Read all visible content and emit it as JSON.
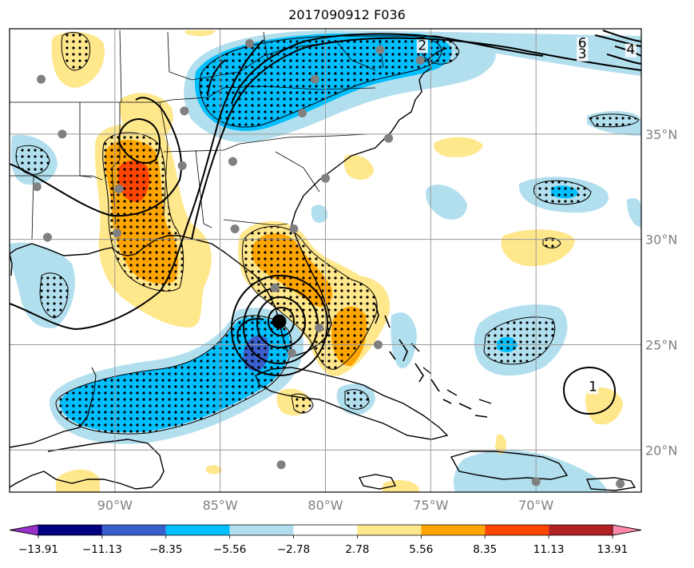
{
  "title": "2017090912 F036",
  "map": {
    "lon_range": [
      -95,
      -65
    ],
    "lat_range": [
      18,
      40
    ],
    "grid": true,
    "lon_ticks": [
      {
        "lon": -90,
        "label": "90°W"
      },
      {
        "lon": -85,
        "label": "85°W"
      },
      {
        "lon": -80,
        "label": "80°W"
      },
      {
        "lon": -75,
        "label": "75°W"
      },
      {
        "lon": -70,
        "label": "70°W"
      }
    ],
    "lat_ticks": [
      {
        "lat": 35,
        "label": "35°N"
      },
      {
        "lat": 30,
        "label": "30°N"
      },
      {
        "lat": 25,
        "label": "25°N"
      },
      {
        "lat": 20,
        "label": "20°N"
      }
    ],
    "storm_center": {
      "lon": -82.2,
      "lat": 26.1
    }
  },
  "contour_labels": [
    {
      "text": "2",
      "lon": -75.4,
      "lat": 39.0
    },
    {
      "text": "6",
      "lon": -67.8,
      "lat": 39.1
    },
    {
      "text": "3",
      "lon": -67.8,
      "lat": 38.6
    },
    {
      "text": "4",
      "lon": -65.5,
      "lat": 38.8
    },
    {
      "text": "1",
      "lon": -67.3,
      "lat": 22.8
    }
  ],
  "colorbar": {
    "colors": [
      "#9932cc",
      "#000080",
      "#3a5fcd",
      "#00bfff",
      "#b2dfee",
      "#ffffff",
      "#ffe78c",
      "#ffa500",
      "#ff4500",
      "#b22222",
      "#ff88aa"
    ],
    "labels": [
      "−13.91",
      "−11.13",
      "−8.35",
      "−5.56",
      "−2.78",
      "2.78",
      "5.56",
      "8.35",
      "11.13",
      "13.91"
    ]
  },
  "stations": [
    {
      "lon": -93.5,
      "lat": 37.6
    },
    {
      "lon": -92.5,
      "lat": 35.0
    },
    {
      "lon": -93.7,
      "lat": 32.5
    },
    {
      "lon": -93.2,
      "lat": 30.1
    },
    {
      "lon": -89.8,
      "lat": 32.4
    },
    {
      "lon": -89.9,
      "lat": 30.3
    },
    {
      "lon": -86.7,
      "lat": 36.1
    },
    {
      "lon": -86.8,
      "lat": 33.5
    },
    {
      "lon": -84.4,
      "lat": 33.7
    },
    {
      "lon": -84.3,
      "lat": 30.5
    },
    {
      "lon": -81.5,
      "lat": 30.5
    },
    {
      "lon": -80.0,
      "lat": 32.9
    },
    {
      "lon": -81.1,
      "lat": 36.0
    },
    {
      "lon": -80.5,
      "lat": 37.6
    },
    {
      "lon": -77.0,
      "lat": 34.8
    },
    {
      "lon": -77.4,
      "lat": 39.0
    },
    {
      "lon": -75.5,
      "lat": 38.5
    },
    {
      "lon": -83.6,
      "lat": 39.3
    },
    {
      "lon": -82.4,
      "lat": 27.7
    },
    {
      "lon": -80.3,
      "lat": 25.8
    },
    {
      "lon": -81.6,
      "lat": 24.6
    },
    {
      "lon": -77.5,
      "lat": 25.0
    },
    {
      "lon": -82.1,
      "lat": 19.3
    },
    {
      "lon": -70.0,
      "lat": 18.5
    },
    {
      "lon": -66.0,
      "lat": 18.4
    }
  ]
}
